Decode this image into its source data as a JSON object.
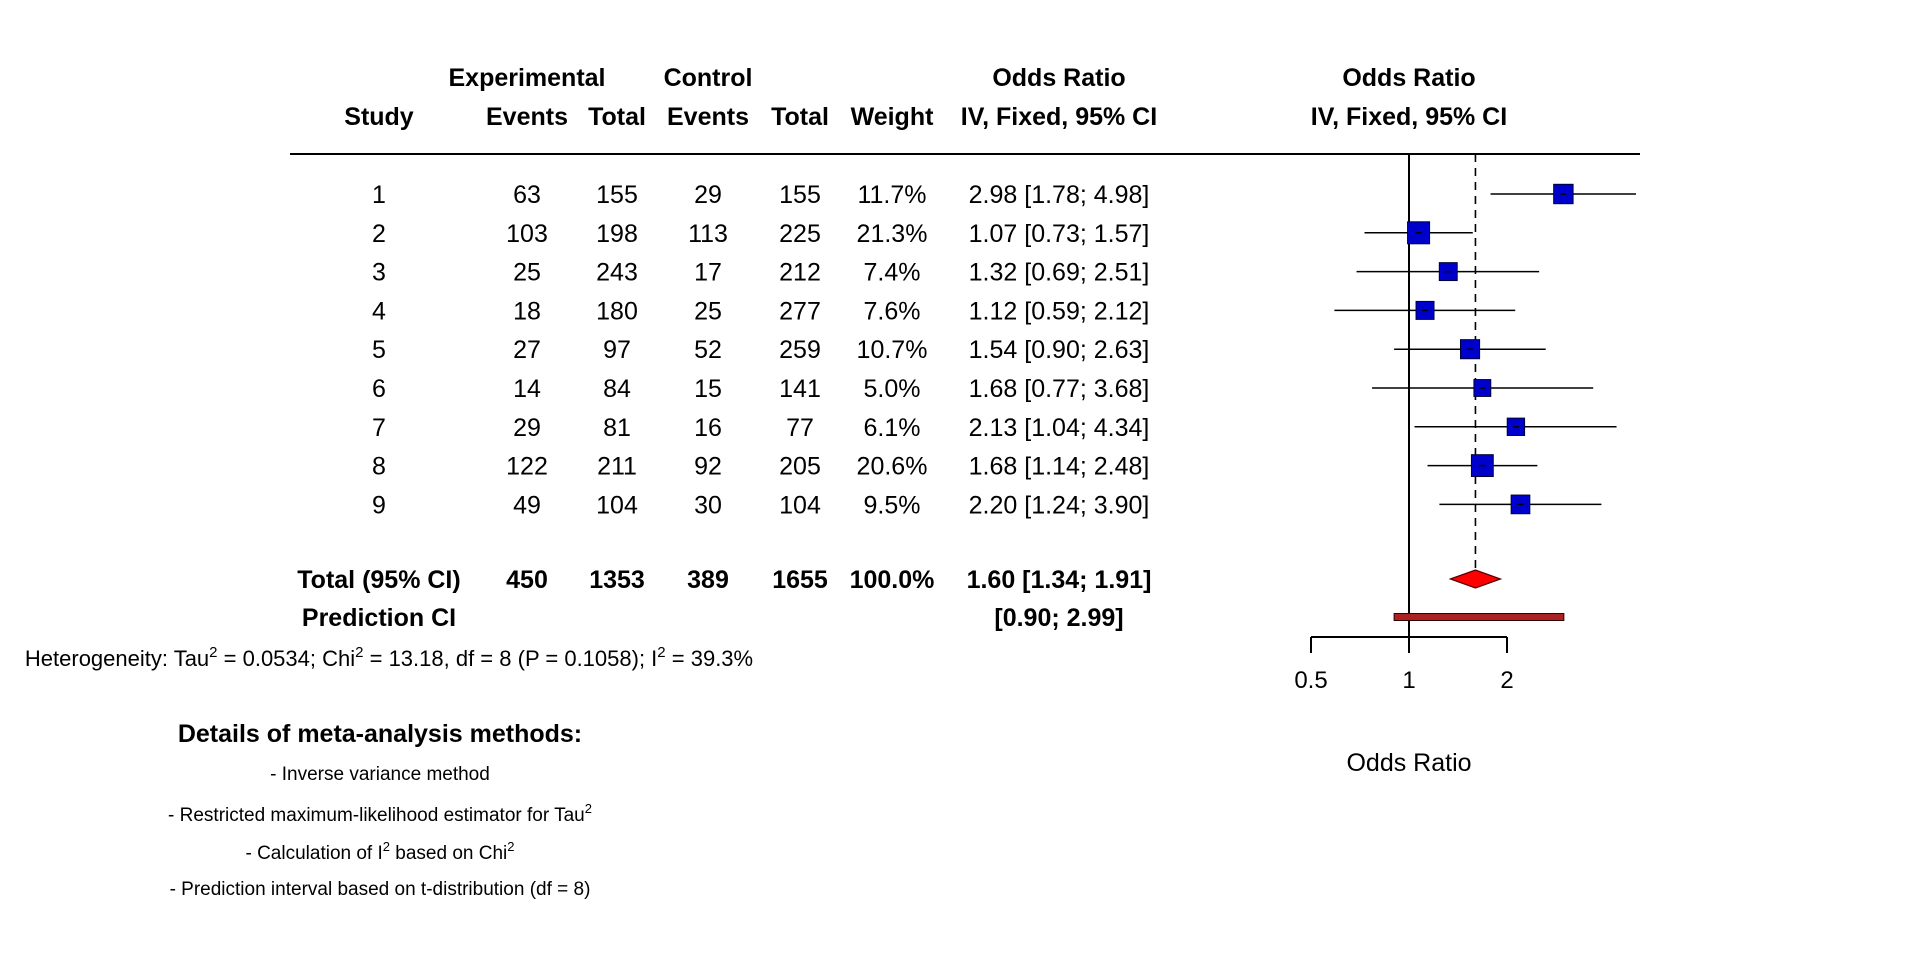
{
  "header": {
    "group_experimental": "Experimental",
    "group_control": "Control",
    "col_study": "Study",
    "col_events": "Events",
    "col_total": "Total",
    "col_weight": "Weight",
    "col_or_title": "Odds Ratio",
    "col_or_method": "IV, Fixed, 95% CI",
    "plot_title": "Odds Ratio",
    "plot_method": "IV, Fixed, 95% CI"
  },
  "studies": [
    {
      "study": "1",
      "exp_events": "63",
      "exp_total": "155",
      "ctrl_events": "29",
      "ctrl_total": "155",
      "weight": "11.7%",
      "ci_text": "2.98 [1.78; 4.98]"
    },
    {
      "study": "2",
      "exp_events": "103",
      "exp_total": "198",
      "ctrl_events": "113",
      "ctrl_total": "225",
      "weight": "21.3%",
      "ci_text": "1.07 [0.73; 1.57]"
    },
    {
      "study": "3",
      "exp_events": "25",
      "exp_total": "243",
      "ctrl_events": "17",
      "ctrl_total": "212",
      "weight": "7.4%",
      "ci_text": "1.32 [0.69; 2.51]"
    },
    {
      "study": "4",
      "exp_events": "18",
      "exp_total": "180",
      "ctrl_events": "25",
      "ctrl_total": "277",
      "weight": "7.6%",
      "ci_text": "1.12 [0.59; 2.12]"
    },
    {
      "study": "5",
      "exp_events": "27",
      "exp_total": "97",
      "ctrl_events": "52",
      "ctrl_total": "259",
      "weight": "10.7%",
      "ci_text": "1.54 [0.90; 2.63]"
    },
    {
      "study": "6",
      "exp_events": "14",
      "exp_total": "84",
      "ctrl_events": "15",
      "ctrl_total": "141",
      "weight": "5.0%",
      "ci_text": "1.68 [0.77; 3.68]"
    },
    {
      "study": "7",
      "exp_events": "29",
      "exp_total": "81",
      "ctrl_events": "16",
      "ctrl_total": "77",
      "weight": "6.1%",
      "ci_text": "2.13 [1.04; 4.34]"
    },
    {
      "study": "8",
      "exp_events": "122",
      "exp_total": "211",
      "ctrl_events": "92",
      "ctrl_total": "205",
      "weight": "20.6%",
      "ci_text": "1.68 [1.14; 2.48]"
    },
    {
      "study": "9",
      "exp_events": "49",
      "exp_total": "104",
      "ctrl_events": "30",
      "ctrl_total": "104",
      "weight": "9.5%",
      "ci_text": "2.20 [1.24; 3.90]"
    }
  ],
  "total": {
    "label": "Total (95% CI)",
    "exp_events": "450",
    "exp_total": "1353",
    "ctrl_events": "389",
    "ctrl_total": "1655",
    "weight": "100.0%",
    "ci_text": "1.60 [1.34; 1.91]"
  },
  "prediction": {
    "label": "Prediction CI",
    "ci_text": "[0.90; 2.99]"
  },
  "heterogeneity": {
    "prefix": "Heterogeneity: Tau",
    "tau2": "0.0534",
    "chi2": "13.18",
    "df": "8",
    "p": "0.1058",
    "i2": "39.3%"
  },
  "methods": {
    "title": "Details of meta-analysis methods:",
    "line1": "- Inverse variance method",
    "line2": "- Restricted maximum-likelihood estimator for Tau",
    "line3a": "- Calculation of I",
    "line3b": " based on Chi",
    "line4": "- Prediction interval based on t-distribution (df = 8)"
  },
  "chart_data": {
    "type": "forest",
    "measure": "Odds Ratio",
    "xlabel": "Odds Ratio",
    "x_scale": "log",
    "xlim": [
      0.5,
      4.0
    ],
    "x_ticks": [
      0.5,
      1,
      2
    ],
    "x_tick_labels": [
      "0.5",
      "1",
      "2"
    ],
    "reference_line": 1,
    "colors": {
      "study_square": "#0000cc",
      "summary_diamond": "#ff0000",
      "prediction_bar": "#aa2222"
    },
    "studies": [
      {
        "study": "1",
        "or": 2.98,
        "lower": 1.78,
        "upper": 4.98,
        "weight": 11.7
      },
      {
        "study": "2",
        "or": 1.07,
        "lower": 0.73,
        "upper": 1.57,
        "weight": 21.3
      },
      {
        "study": "3",
        "or": 1.32,
        "lower": 0.69,
        "upper": 2.51,
        "weight": 7.4
      },
      {
        "study": "4",
        "or": 1.12,
        "lower": 0.59,
        "upper": 2.12,
        "weight": 7.6
      },
      {
        "study": "5",
        "or": 1.54,
        "lower": 0.9,
        "upper": 2.63,
        "weight": 10.7
      },
      {
        "study": "6",
        "or": 1.68,
        "lower": 0.77,
        "upper": 3.68,
        "weight": 5.0
      },
      {
        "study": "7",
        "or": 2.13,
        "lower": 1.04,
        "upper": 4.34,
        "weight": 6.1
      },
      {
        "study": "8",
        "or": 1.68,
        "lower": 1.14,
        "upper": 2.48,
        "weight": 20.6
      },
      {
        "study": "9",
        "or": 2.2,
        "lower": 1.24,
        "upper": 3.9,
        "weight": 9.5
      }
    ],
    "summary": {
      "or": 1.6,
      "lower": 1.34,
      "upper": 1.91
    },
    "prediction_interval": {
      "lower": 0.9,
      "upper": 2.99
    }
  }
}
